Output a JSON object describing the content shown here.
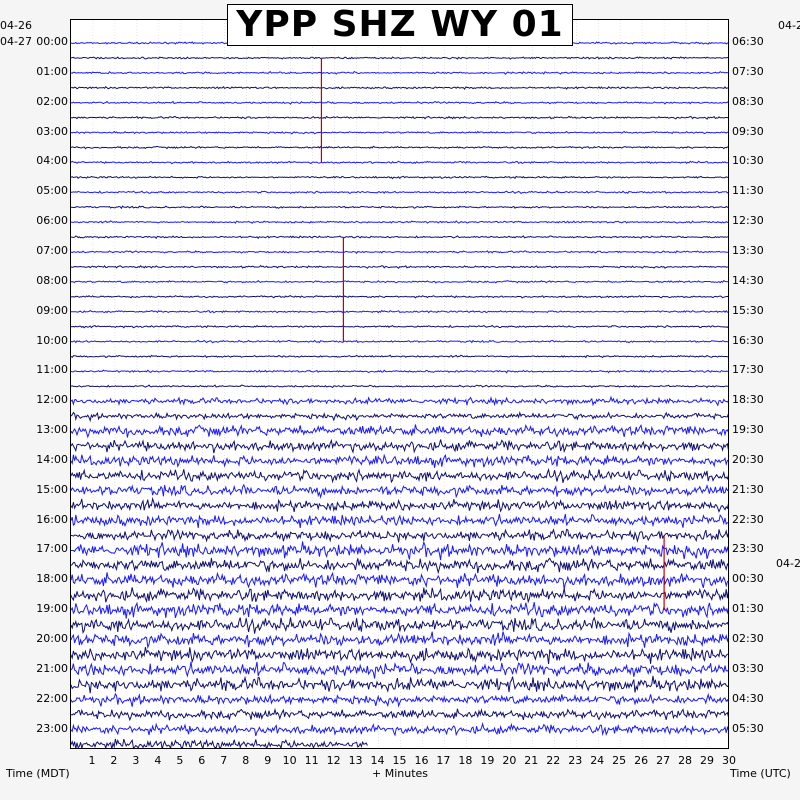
{
  "title": "YPP SHZ WY 01",
  "date_labels": {
    "left_start": "04-26",
    "left_day": "04-27",
    "right_start": "04-2",
    "right_mid": "04-2"
  },
  "colors": {
    "trace_a": "#1a1aff",
    "trace_b": "#101070",
    "event": "#c00000",
    "background": "#ffffff"
  },
  "chart_data": {
    "type": "line",
    "description_kind": "helicorder",
    "xlabel": "+ Minutes",
    "left_axis_label": "Time (MDT)",
    "right_axis_label": "Time (UTC)",
    "x_ticks": [
      "1",
      "2",
      "3",
      "4",
      "5",
      "6",
      "7",
      "8",
      "9",
      "10",
      "11",
      "12",
      "13",
      "14",
      "15",
      "16",
      "17",
      "18",
      "19",
      "20",
      "21",
      "22",
      "23",
      "24",
      "25",
      "26",
      "27",
      "28",
      "29",
      "30"
    ],
    "xlim": [
      0,
      30
    ],
    "row_labels_left": [
      "00:00",
      "01:00",
      "02:00",
      "03:00",
      "04:00",
      "05:00",
      "06:00",
      "07:00",
      "08:00",
      "09:00",
      "10:00",
      "11:00",
      "12:00",
      "13:00",
      "14:00",
      "15:00",
      "16:00",
      "17:00",
      "18:00",
      "19:00",
      "20:00",
      "21:00",
      "22:00",
      "23:00"
    ],
    "row_labels_right": [
      "06:30",
      "07:30",
      "08:30",
      "09:30",
      "10:30",
      "11:30",
      "12:30",
      "13:30",
      "14:30",
      "15:30",
      "16:30",
      "17:30",
      "18:30",
      "19:30",
      "20:30",
      "21:30",
      "22:30",
      "23:30",
      "00:30",
      "01:30",
      "02:30",
      "03:30",
      "04:30",
      "05:30"
    ],
    "traces_per_hour": 2,
    "minutes_per_trace": 30,
    "last_trace_end_minute": 13.5
  }
}
